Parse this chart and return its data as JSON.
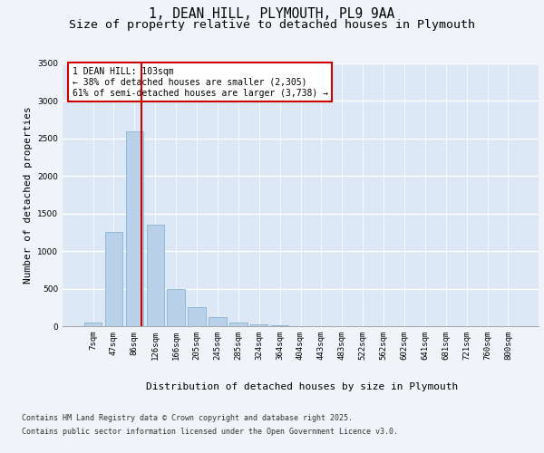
{
  "title_line1": "1, DEAN HILL, PLYMOUTH, PL9 9AA",
  "title_line2": "Size of property relative to detached houses in Plymouth",
  "xlabel": "Distribution of detached houses by size in Plymouth",
  "ylabel": "Number of detached properties",
  "categories": [
    "7sqm",
    "47sqm",
    "86sqm",
    "126sqm",
    "166sqm",
    "205sqm",
    "245sqm",
    "285sqm",
    "324sqm",
    "364sqm",
    "404sqm",
    "443sqm",
    "483sqm",
    "522sqm",
    "562sqm",
    "602sqm",
    "641sqm",
    "681sqm",
    "721sqm",
    "760sqm",
    "800sqm"
  ],
  "values": [
    50,
    1250,
    2600,
    1350,
    500,
    250,
    120,
    50,
    30,
    15,
    5,
    0,
    0,
    0,
    0,
    0,
    0,
    0,
    0,
    0,
    0
  ],
  "bar_color": "#b8d0e8",
  "bar_edge_color": "#7aabcc",
  "vline_color": "#cc0000",
  "vline_pos": 2.35,
  "annotation_text": "1 DEAN HILL: 103sqm\n← 38% of detached houses are smaller (2,305)\n61% of semi-detached houses are larger (3,738) →",
  "annotation_box_color": "#cc0000",
  "ylim": [
    0,
    3500
  ],
  "yticks": [
    0,
    500,
    1000,
    1500,
    2000,
    2500,
    3000,
    3500
  ],
  "background_color": "#dce8f5",
  "grid_color": "#ffffff",
  "fig_bg_color": "#f0f4f8",
  "footer_line1": "Contains HM Land Registry data © Crown copyright and database right 2025.",
  "footer_line2": "Contains public sector information licensed under the Open Government Licence v3.0.",
  "title_fontsize": 10.5,
  "subtitle_fontsize": 9.5,
  "axis_label_fontsize": 8,
  "tick_fontsize": 6.5,
  "footer_fontsize": 6,
  "annot_fontsize": 7
}
